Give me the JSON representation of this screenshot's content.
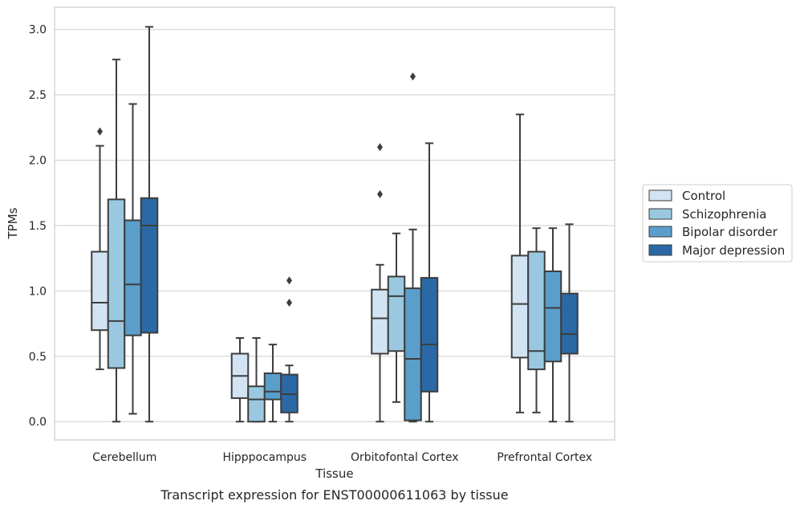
{
  "chart_data": {
    "type": "box",
    "xlabel": "Tissue",
    "ylabel": "TPMs",
    "caption": "Transcript expression for ENST00000611063 by tissue",
    "ylim": [
      -0.14,
      3.17
    ],
    "yticks": [
      "0.0",
      "0.5",
      "1.0",
      "1.5",
      "2.0",
      "2.5",
      "3.0"
    ],
    "grid": "horizontal",
    "legend_position": "right",
    "categories": [
      "Cerebellum",
      "Hipppocampus",
      "Orbitofontal Cortex",
      "Prefrontal Cortex"
    ],
    "series": [
      {
        "name": "Control",
        "color": "#d2e3f3",
        "boxes": [
          {
            "min": 0.4,
            "q1": 0.7,
            "median": 0.91,
            "q3": 1.3,
            "max": 2.11,
            "outliers": [
              2.22
            ]
          },
          {
            "min": 0.0,
            "q1": 0.18,
            "median": 0.35,
            "q3": 0.52,
            "max": 0.64,
            "outliers": []
          },
          {
            "min": 0.0,
            "q1": 0.52,
            "median": 0.79,
            "q3": 1.01,
            "max": 1.2,
            "outliers": [
              1.74,
              2.1
            ]
          },
          {
            "min": 0.07,
            "q1": 0.49,
            "median": 0.9,
            "q3": 1.27,
            "max": 2.35,
            "outliers": []
          }
        ]
      },
      {
        "name": "Schizophrenia",
        "color": "#9ac8e0",
        "boxes": [
          {
            "min": 0.0,
            "q1": 0.41,
            "median": 0.77,
            "q3": 1.7,
            "max": 2.77,
            "outliers": []
          },
          {
            "min": 0.0,
            "q1": 0.0,
            "median": 0.17,
            "q3": 0.27,
            "max": 0.64,
            "outliers": []
          },
          {
            "min": 0.15,
            "q1": 0.54,
            "median": 0.96,
            "q3": 1.11,
            "max": 1.44,
            "outliers": []
          },
          {
            "min": 0.07,
            "q1": 0.4,
            "median": 0.54,
            "q3": 1.3,
            "max": 1.48,
            "outliers": []
          }
        ]
      },
      {
        "name": "Bipolar disorder",
        "color": "#5a9ecc",
        "boxes": [
          {
            "min": 0.06,
            "q1": 0.66,
            "median": 1.05,
            "q3": 1.54,
            "max": 2.43,
            "outliers": []
          },
          {
            "min": 0.0,
            "q1": 0.17,
            "median": 0.23,
            "q3": 0.37,
            "max": 0.59,
            "outliers": []
          },
          {
            "min": 0.0,
            "q1": 0.01,
            "median": 0.48,
            "q3": 1.02,
            "max": 1.47,
            "outliers": [
              2.64
            ]
          },
          {
            "min": 0.0,
            "q1": 0.46,
            "median": 0.87,
            "q3": 1.15,
            "max": 1.48,
            "outliers": []
          }
        ]
      },
      {
        "name": "Major depression",
        "color": "#2a69a6",
        "boxes": [
          {
            "min": 0.0,
            "q1": 0.68,
            "median": 1.5,
            "q3": 1.71,
            "max": 3.02,
            "outliers": []
          },
          {
            "min": 0.0,
            "q1": 0.07,
            "median": 0.21,
            "q3": 0.36,
            "max": 0.43,
            "outliers": [
              0.91,
              1.08
            ]
          },
          {
            "min": 0.0,
            "q1": 0.23,
            "median": 0.59,
            "q3": 1.1,
            "max": 2.13,
            "outliers": []
          },
          {
            "min": 0.0,
            "q1": 0.52,
            "median": 0.67,
            "q3": 0.98,
            "max": 1.51,
            "outliers": []
          }
        ]
      }
    ]
  }
}
